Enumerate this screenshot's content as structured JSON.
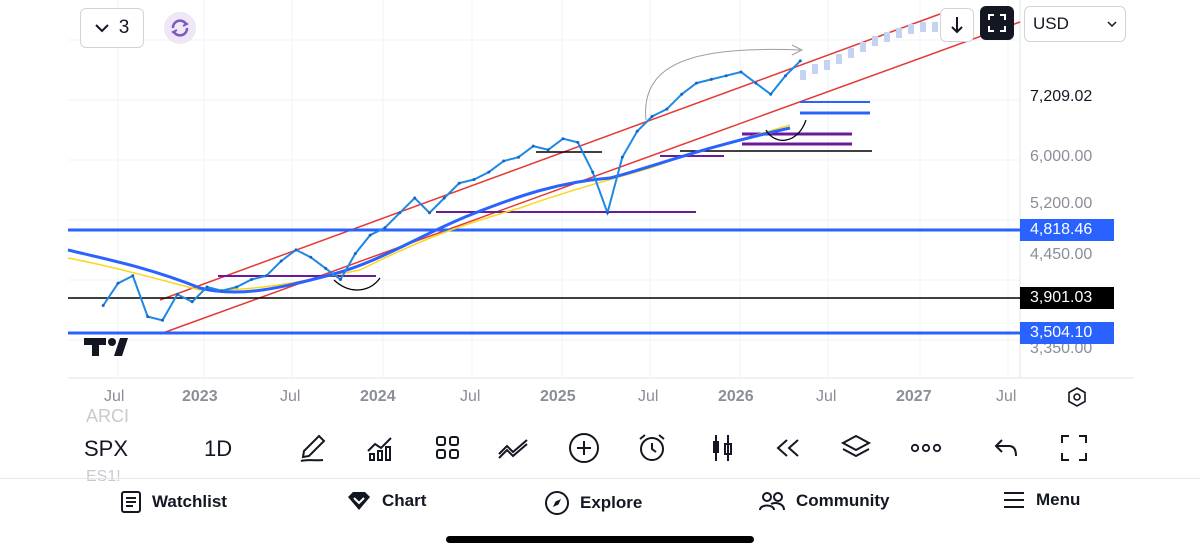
{
  "toolbar_top": {
    "interval_count": "3",
    "currency": "USD"
  },
  "price_axis": {
    "labels": [
      "7,209.02",
      "6,000.00",
      "5,200.00",
      "4,450.00",
      "3,350.00"
    ],
    "tags": [
      {
        "value": "4,818.46",
        "color": "#2962ff"
      },
      {
        "value": "3,901.03",
        "color": "#000000"
      },
      {
        "value": "3,504.10",
        "color": "#2962ff"
      }
    ]
  },
  "time_axis": {
    "labels": [
      "Jul",
      "2023",
      "Jul",
      "2024",
      "Jul",
      "2025",
      "Jul",
      "2026",
      "Jul",
      "2027",
      "Jul"
    ]
  },
  "chart_data": {
    "type": "line",
    "series": [
      {
        "x": [
          "2022-06",
          "2022-07",
          "2022-08",
          "2022-09",
          "2022-10",
          "2022-11",
          "2022-12",
          "2023-01",
          "2023-02",
          "2023-03",
          "2023-04",
          "2023-05",
          "2023-06",
          "2023-07",
          "2023-08",
          "2023-09",
          "2023-10",
          "2023-11",
          "2023-12",
          "2024-01",
          "2024-02",
          "2024-03",
          "2024-04",
          "2024-05",
          "2024-06",
          "2024-07",
          "2024-08",
          "2024-09",
          "2024-10",
          "2024-11",
          "2024-12",
          "2025-01",
          "2025-02",
          "2025-03",
          "2025-04",
          "2025-05",
          "2025-06",
          "2025-07",
          "2025-08",
          "2025-09",
          "2025-10",
          "2025-11",
          "2025-12",
          "2026-01",
          "2026-02",
          "2026-03",
          "2026-04",
          "2026-05"
        ],
        "values": [
          3800,
          4100,
          4200,
          3650,
          3600,
          3950,
          3850,
          4050,
          4000,
          4050,
          4150,
          4200,
          4400,
          4550,
          4450,
          4300,
          4150,
          4500,
          4750,
          4850,
          5050,
          5250,
          5050,
          5250,
          5450,
          5500,
          5600,
          5750,
          5800,
          5950,
          5900,
          6050,
          6000,
          5600,
          5050,
          5800,
          6150,
          6350,
          6450,
          6650,
          6800,
          6850,
          6900,
          6950,
          6800,
          6650,
          6900,
          7100
        ]
      }
    ],
    "levels": [
      7209.02,
      4818.46,
      3901.03,
      3504.1
    ]
  },
  "bottom_toolbar": {
    "symbol": "SPX",
    "resolution": "1D",
    "ghost_above": "ARCI",
    "ghost_below": "ES1!"
  },
  "bottom_nav": {
    "watchlist": "Watchlist",
    "chart": "Chart",
    "explore": "Explore",
    "community": "Community",
    "menu": "Menu"
  },
  "colors": {
    "blue": "#2962ff",
    "red": "#e53935",
    "purple": "#6a1b9a"
  }
}
